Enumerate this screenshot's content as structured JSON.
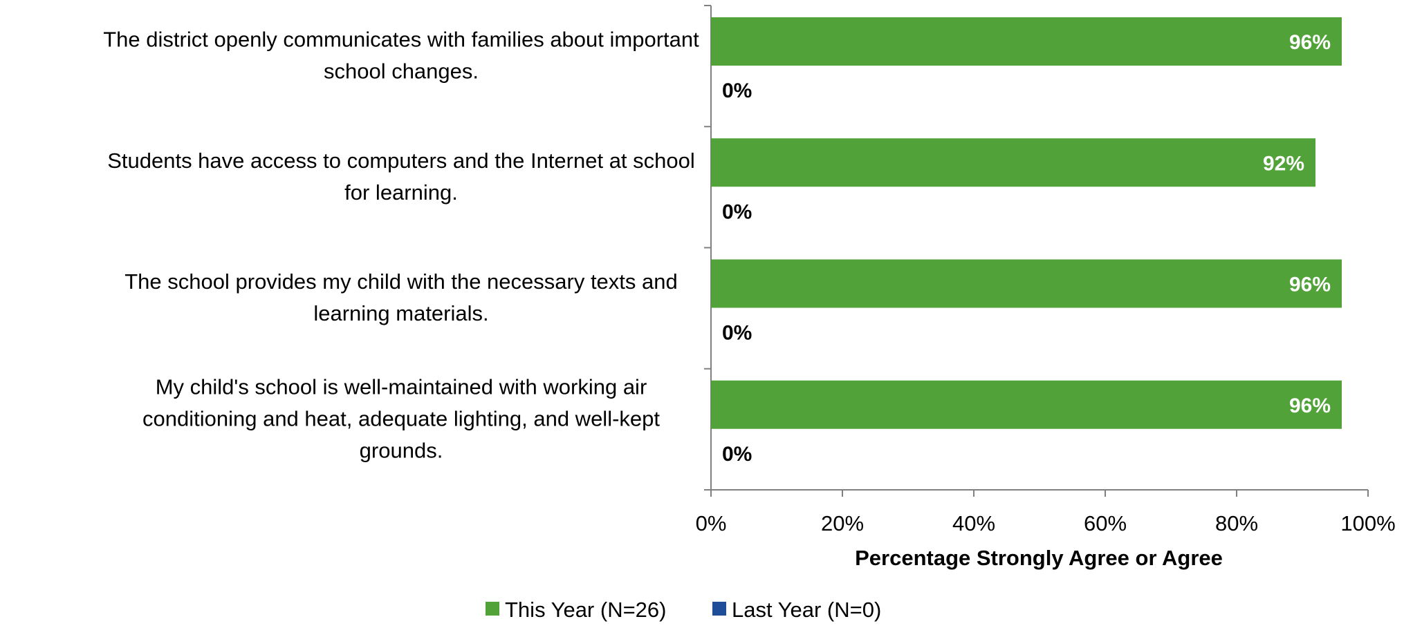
{
  "chart_data": {
    "type": "bar",
    "orientation": "horizontal",
    "categories": [
      [
        "The district openly communicates with families about important",
        "school changes."
      ],
      [
        "Students have access to computers and the Internet at school",
        "for learning."
      ],
      [
        "The school provides my child with the necessary texts and",
        "learning materials."
      ],
      [
        "My child's school is well-maintained with working air",
        "conditioning and heat, adequate lighting, and well-kept",
        "grounds."
      ]
    ],
    "series": [
      {
        "name": "This Year (N=26)",
        "color": "#52a23a",
        "values": [
          96,
          92,
          96,
          96
        ],
        "labels": [
          "96%",
          "92%",
          "96%",
          "96%"
        ]
      },
      {
        "name": "Last Year (N=0)",
        "color": "#1f4e99",
        "values": [
          0,
          0,
          0,
          0
        ],
        "labels": [
          "0%",
          "0%",
          "0%",
          "0%"
        ]
      }
    ],
    "xlabel": "Percentage Strongly Agree or Agree",
    "xlim": [
      0,
      100
    ],
    "ticks": [
      0,
      20,
      40,
      60,
      80,
      100
    ],
    "tick_labels": [
      "0%",
      "20%",
      "40%",
      "60%",
      "80%",
      "100%"
    ],
    "legend_position": "bottom",
    "grid": false
  }
}
